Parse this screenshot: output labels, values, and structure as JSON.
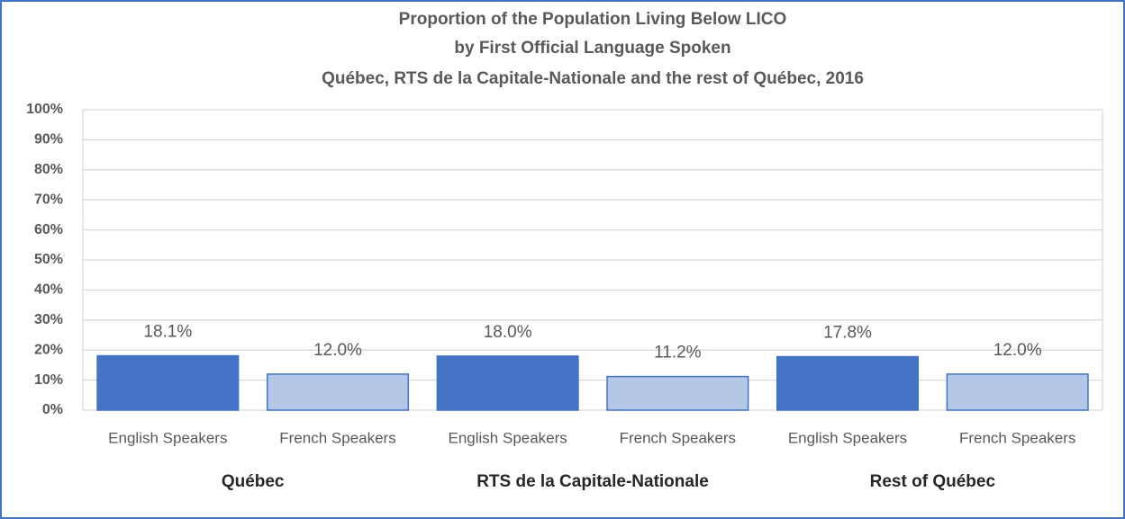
{
  "chart_data": {
    "type": "bar",
    "title": [
      "Proportion of the Population Living Below LICO",
      "by First Official Language Spoken",
      "Québec, RTS de la Capitale-Nationale and the rest of Québec, 2016"
    ],
    "categories": [
      "Québec",
      "RTS de la Capitale-Nationale",
      "Rest of Québec"
    ],
    "series": [
      {
        "name": "English Speakers",
        "color": "#4472c4",
        "values": [
          18.1,
          18.0,
          17.8
        ],
        "value_labels": [
          "18.1%",
          "18.0%",
          "17.8%"
        ]
      },
      {
        "name": "French Speakers",
        "color": "#b4c7e7",
        "values": [
          12.0,
          11.2,
          12.0
        ],
        "value_labels": [
          "12.0%",
          "11.2%",
          "12.0%"
        ]
      }
    ],
    "ylim": [
      0,
      100
    ],
    "yticks": [
      {
        "value": 0,
        "label": "0%"
      },
      {
        "value": 10,
        "label": "10%"
      },
      {
        "value": 20,
        "label": "20%"
      },
      {
        "value": 30,
        "label": "30%"
      },
      {
        "value": 40,
        "label": "40%"
      },
      {
        "value": 50,
        "label": "50%"
      },
      {
        "value": 60,
        "label": "60%"
      },
      {
        "value": 70,
        "label": "70%"
      },
      {
        "value": 80,
        "label": "80%"
      },
      {
        "value": 90,
        "label": "90%"
      },
      {
        "value": 100,
        "label": "100%"
      }
    ],
    "grid": true
  }
}
